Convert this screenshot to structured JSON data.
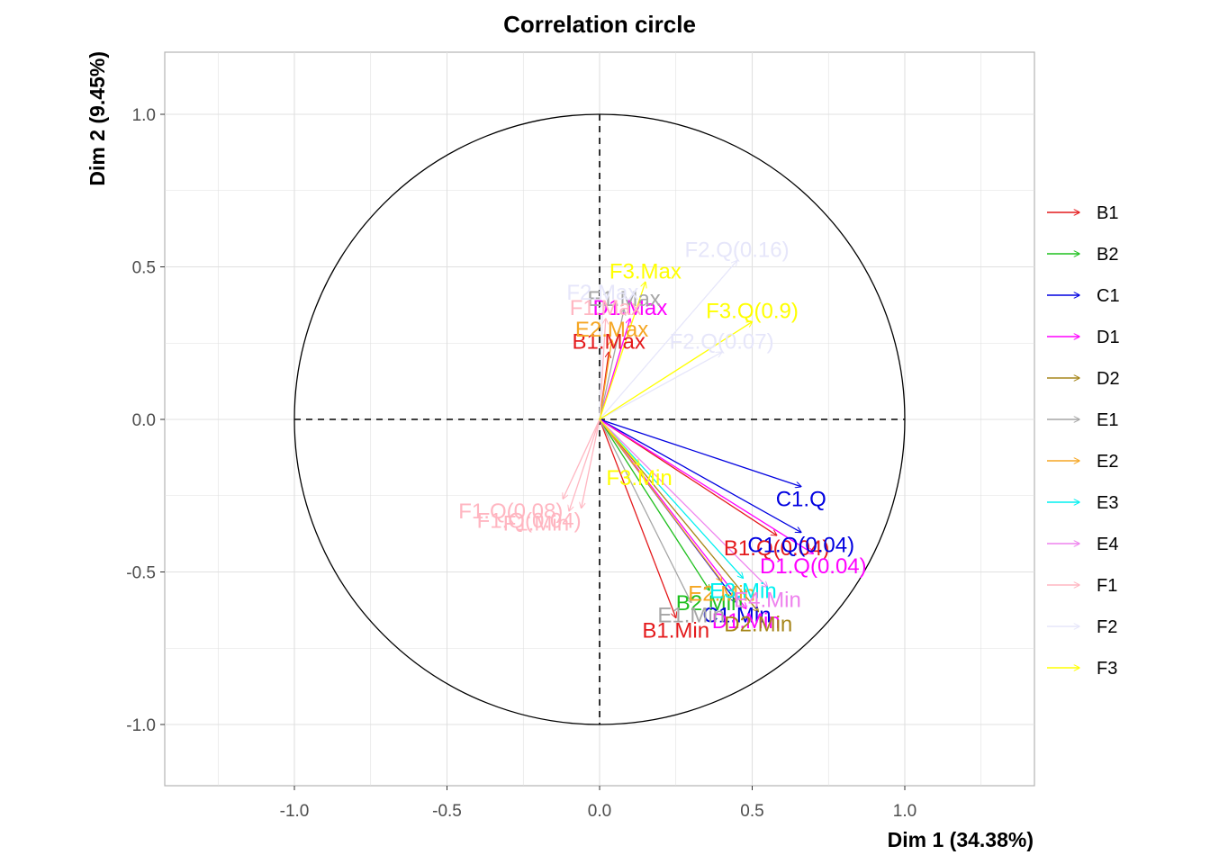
{
  "chart_data": {
    "type": "scatter",
    "subtype": "correlation-circle",
    "title": "Correlation circle",
    "xlabel": "Dim 1 (34.38%)",
    "ylabel": "Dim 2 (9.45%)",
    "xlim": [
      -1.45,
      1.45
    ],
    "ylim": [
      -1.2,
      1.2
    ],
    "x_ticks": [
      {
        "value": -1.0,
        "label": "-1.0"
      },
      {
        "value": -0.5,
        "label": "-0.5"
      },
      {
        "value": 0.0,
        "label": "0.0"
      },
      {
        "value": 0.5,
        "label": "0.5"
      },
      {
        "value": 1.0,
        "label": "1.0"
      }
    ],
    "y_ticks": [
      {
        "value": 1.0,
        "label": "1.0"
      },
      {
        "value": 0.5,
        "label": "0.5"
      },
      {
        "value": 0.0,
        "label": "0.0"
      },
      {
        "value": -0.5,
        "label": "-0.5"
      },
      {
        "value": -1.0,
        "label": "-1.0"
      }
    ],
    "grid": true,
    "unit_circle": true,
    "legend_position": "right",
    "legend": [
      {
        "name": "B1",
        "color": "#e41a1c"
      },
      {
        "name": "B2",
        "color": "#1fc01f"
      },
      {
        "name": "C1",
        "color": "#0000e0"
      },
      {
        "name": "D1",
        "color": "#ff00ff"
      },
      {
        "name": "D2",
        "color": "#a6861a"
      },
      {
        "name": "E1",
        "color": "#a6a6a6"
      },
      {
        "name": "E2",
        "color": "#f5a623"
      },
      {
        "name": "E3",
        "color": "#00f0f0"
      },
      {
        "name": "E4",
        "color": "#ee82ee"
      },
      {
        "name": "F1",
        "color": "#ffb6c1"
      },
      {
        "name": "F2",
        "color": "#e6e6fa"
      },
      {
        "name": "F3",
        "color": "#ffff00"
      }
    ],
    "variables": [
      {
        "group": "B1",
        "label": "B1.Min",
        "x": 0.25,
        "y": -0.65
      },
      {
        "group": "B1",
        "label": "B1.Max",
        "x": 0.03,
        "y": 0.22
      },
      {
        "group": "B1",
        "label": "B1.Q(0.04)",
        "x": 0.58,
        "y": -0.38
      },
      {
        "group": "B2",
        "label": "B2.Min",
        "x": 0.36,
        "y": -0.56
      },
      {
        "group": "C1",
        "label": "C1.Min",
        "x": 0.45,
        "y": -0.6
      },
      {
        "group": "C1",
        "label": "C1.Q(0.04)",
        "x": 0.66,
        "y": -0.37
      },
      {
        "group": "C1",
        "label": "C1.Q",
        "x": 0.66,
        "y": -0.22
      },
      {
        "group": "D1",
        "label": "D1.Min",
        "x": 0.48,
        "y": -0.62
      },
      {
        "group": "D1",
        "label": "D1.Max",
        "x": 0.1,
        "y": 0.33
      },
      {
        "group": "D1",
        "label": "D1.Q(0.04)",
        "x": 0.7,
        "y": -0.44
      },
      {
        "group": "D2",
        "label": "D2.Min",
        "x": 0.52,
        "y": -0.63
      },
      {
        "group": "E1",
        "label": "E1.Min",
        "x": 0.3,
        "y": -0.6
      },
      {
        "group": "E1",
        "label": "E1.Max",
        "x": 0.08,
        "y": 0.36
      },
      {
        "group": "E2",
        "label": "E2.Min",
        "x": 0.4,
        "y": -0.53
      },
      {
        "group": "E2",
        "label": "E2.Max",
        "x": 0.04,
        "y": 0.26
      },
      {
        "group": "E3",
        "label": "E3.Min",
        "x": 0.47,
        "y": -0.52
      },
      {
        "group": "E4",
        "label": "E4.Min",
        "x": 0.55,
        "y": -0.55
      },
      {
        "group": "F1",
        "label": "F1.Min",
        "x": -0.1,
        "y": -0.3
      },
      {
        "group": "F1",
        "label": "F1.Q(0.04)",
        "x": -0.06,
        "y": -0.29
      },
      {
        "group": "F1",
        "label": "F1.Q(0.08)",
        "x": -0.12,
        "y": -0.26
      },
      {
        "group": "F1",
        "label": "F1.Max",
        "x": 0.02,
        "y": 0.33
      },
      {
        "group": "F2",
        "label": "F2.Max",
        "x": 0.01,
        "y": 0.38
      },
      {
        "group": "F2",
        "label": "F2.Q(0.07)",
        "x": 0.4,
        "y": 0.22
      },
      {
        "group": "F2",
        "label": "F2.Q(0.16)",
        "x": 0.45,
        "y": 0.52
      },
      {
        "group": "F3",
        "label": "F3.Max",
        "x": 0.15,
        "y": 0.45
      },
      {
        "group": "F3",
        "label": "F3.Min",
        "x": 0.13,
        "y": -0.15
      },
      {
        "group": "F3",
        "label": "F3.Q(0.9)",
        "x": 0.5,
        "y": 0.32
      }
    ]
  }
}
